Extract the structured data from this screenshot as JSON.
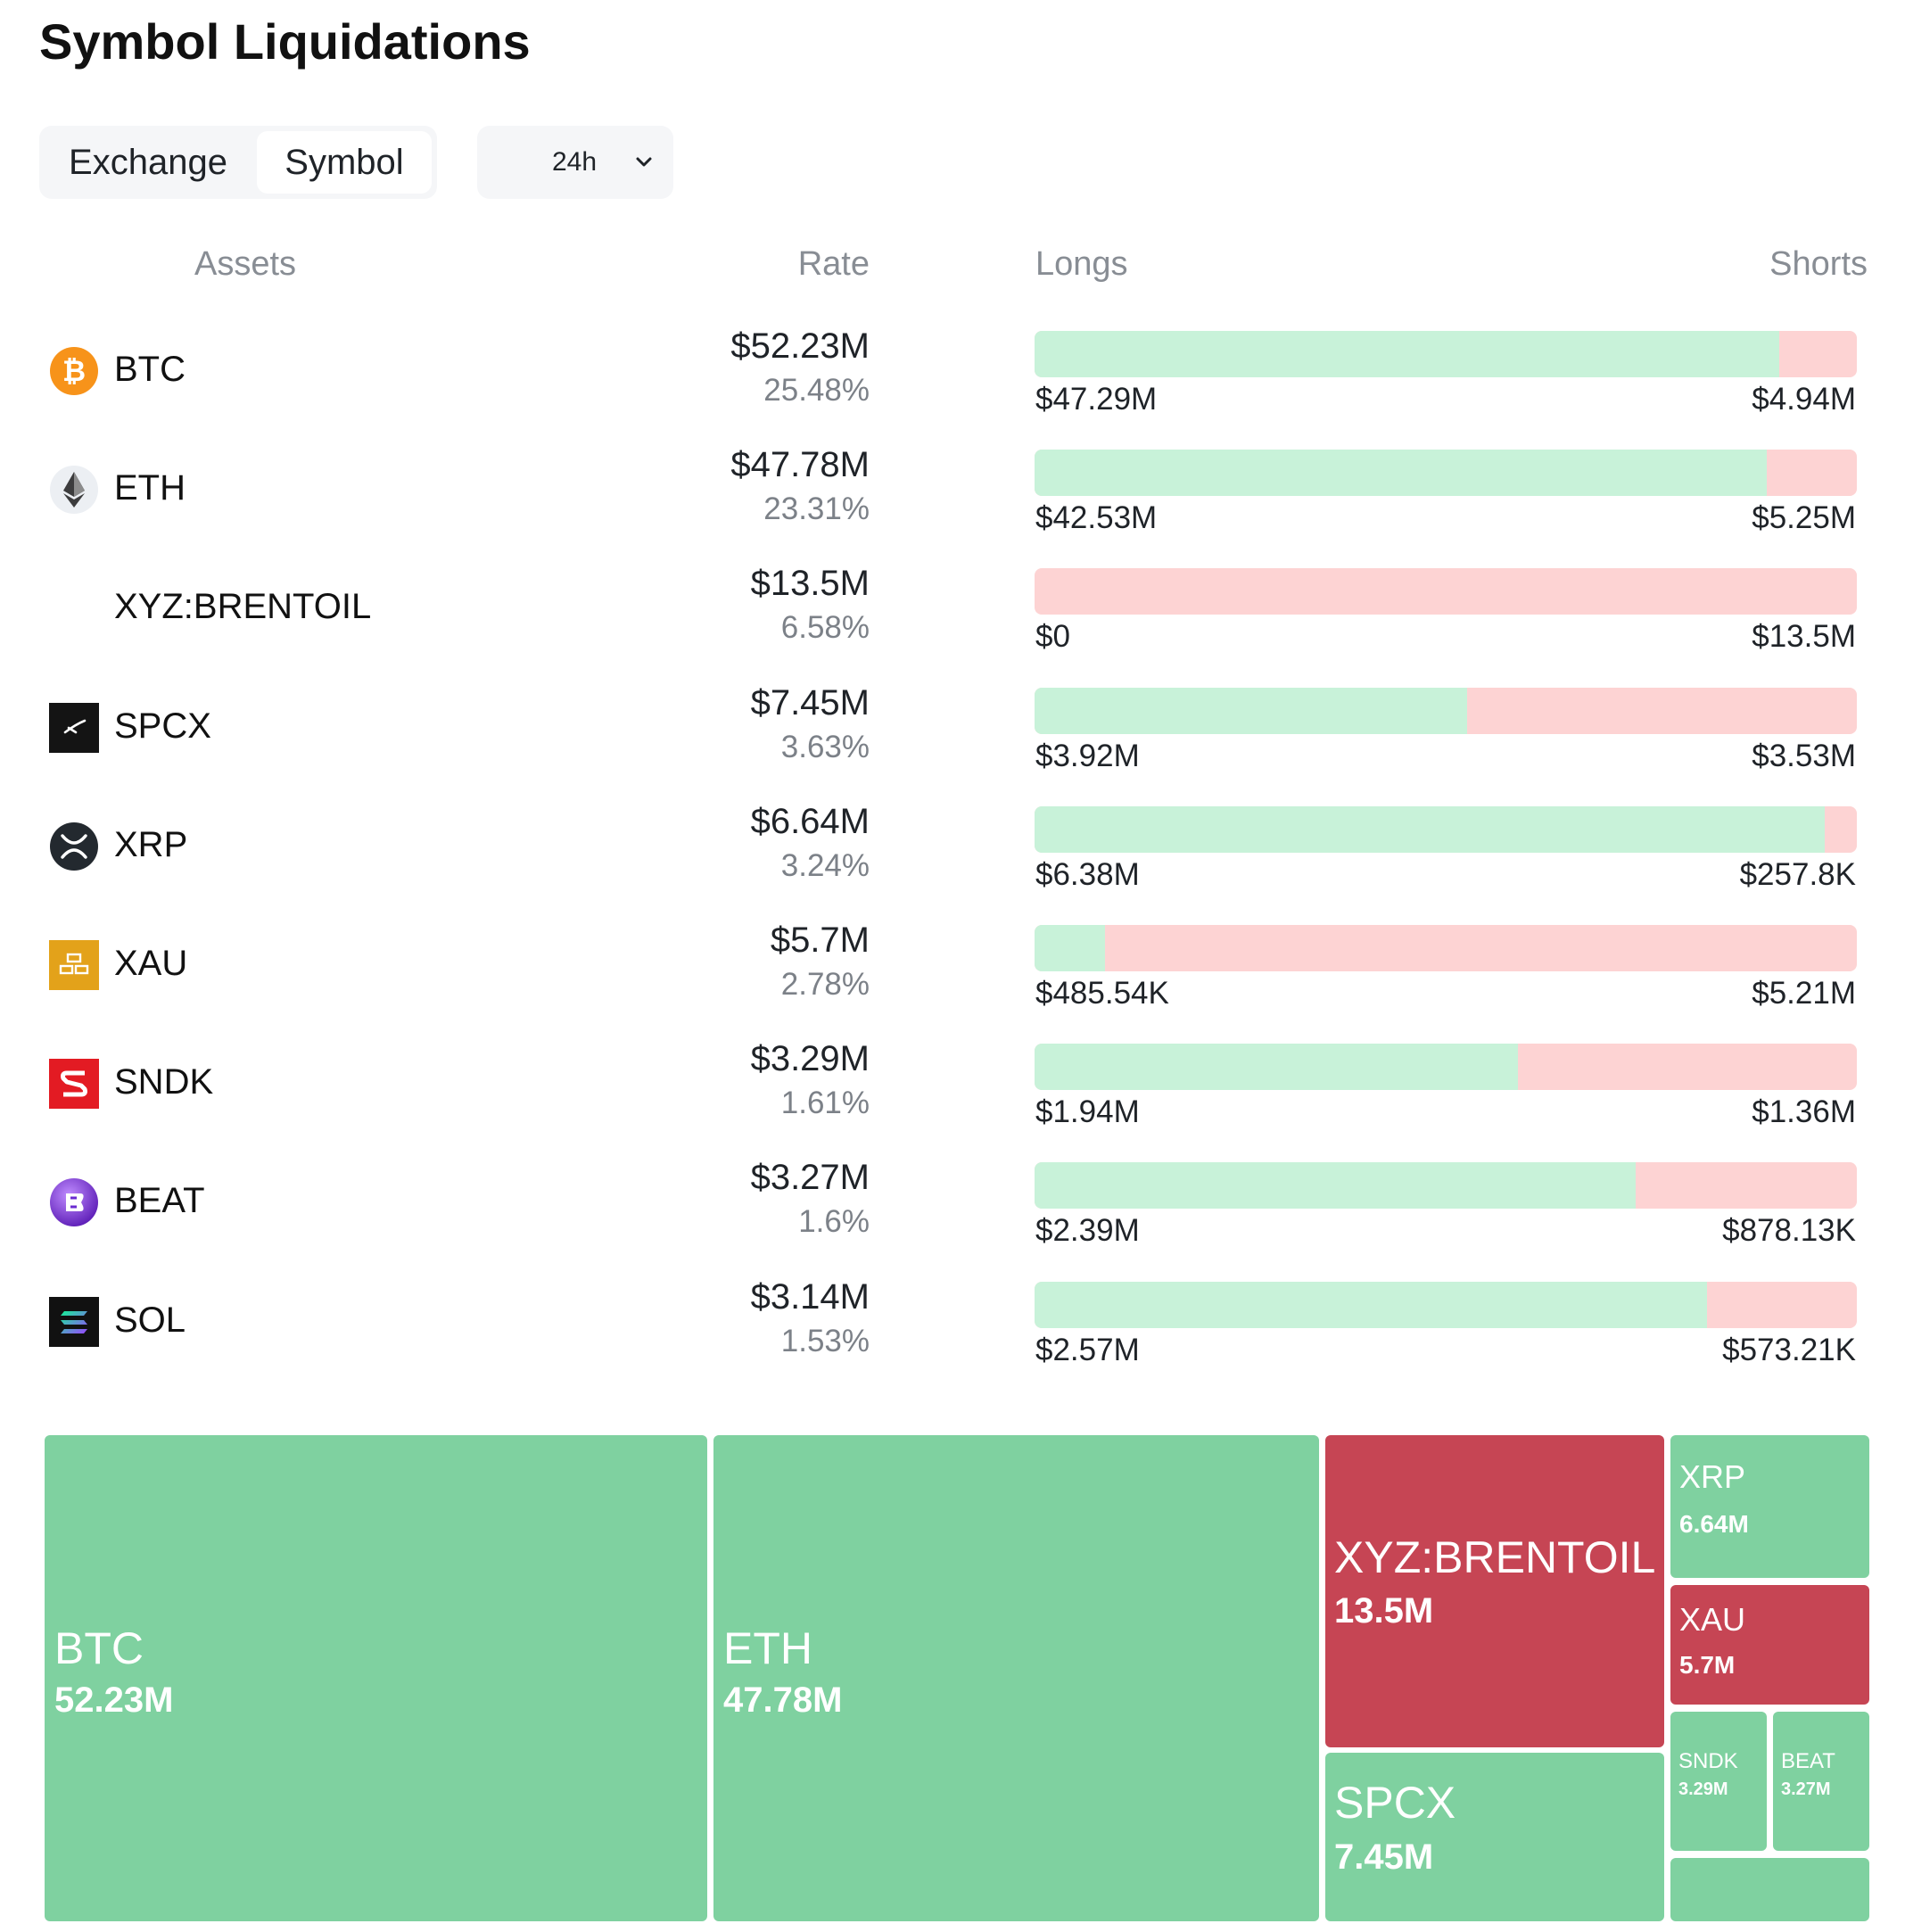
{
  "title": "Symbol Liquidations",
  "tabs": [
    {
      "label": "Exchange",
      "selected": false
    },
    {
      "label": "Symbol",
      "selected": true
    }
  ],
  "period": {
    "selected": "24h"
  },
  "columns": {
    "assets": "Assets",
    "rate": "Rate",
    "longs": "Longs",
    "shorts": "Shorts"
  },
  "colors": {
    "longs": "#c8f2d9",
    "shorts": "#fdd3d3",
    "treemap_green": "#7fd1a0",
    "treemap_red": "#c64554"
  },
  "rows": [
    {
      "symbol": "BTC",
      "icon": "bitcoin-icon",
      "rate": "$52.23M",
      "pct": "25.48%",
      "longs": "$47.29M",
      "shorts": "$4.94M",
      "long_share": 0.9054
    },
    {
      "symbol": "ETH",
      "icon": "ethereum-icon",
      "rate": "$47.78M",
      "pct": "23.31%",
      "longs": "$42.53M",
      "shorts": "$5.25M",
      "long_share": 0.8901
    },
    {
      "symbol": "XYZ:BRENTOIL",
      "icon": "",
      "rate": "$13.5M",
      "pct": "6.58%",
      "longs": "$0",
      "shorts": "$13.5M",
      "long_share": 0.0
    },
    {
      "symbol": "SPCX",
      "icon": "spacex-icon",
      "rate": "$7.45M",
      "pct": "3.63%",
      "longs": "$3.92M",
      "shorts": "$3.53M",
      "long_share": 0.5262
    },
    {
      "symbol": "XRP",
      "icon": "xrp-icon",
      "rate": "$6.64M",
      "pct": "3.24%",
      "longs": "$6.38M",
      "shorts": "$257.8K",
      "long_share": 0.9612
    },
    {
      "symbol": "XAU",
      "icon": "gold-bars-icon",
      "rate": "$5.7M",
      "pct": "2.78%",
      "longs": "$485.54K",
      "shorts": "$5.21M",
      "long_share": 0.0852
    },
    {
      "symbol": "SNDK",
      "icon": "sandisk-icon",
      "rate": "$3.29M",
      "pct": "1.61%",
      "longs": "$1.94M",
      "shorts": "$1.36M",
      "long_share": 0.5879
    },
    {
      "symbol": "BEAT",
      "icon": "beat-icon",
      "rate": "$3.27M",
      "pct": "1.6%",
      "longs": "$2.39M",
      "shorts": "$878.13K",
      "long_share": 0.7314
    },
    {
      "symbol": "SOL",
      "icon": "solana-icon",
      "rate": "$3.14M",
      "pct": "1.53%",
      "longs": "$2.57M",
      "shorts": "$573.21K",
      "long_share": 0.8175
    }
  ],
  "treemap": [
    {
      "name": "BTC",
      "value": "52.23M",
      "color": "green"
    },
    {
      "name": "ETH",
      "value": "47.78M",
      "color": "green"
    },
    {
      "name": "XYZ:BRENTOIL",
      "value": "13.5M",
      "color": "red"
    },
    {
      "name": "SPCX",
      "value": "7.45M",
      "color": "green"
    },
    {
      "name": "XRP",
      "value": "6.64M",
      "color": "green"
    },
    {
      "name": "XAU",
      "value": "5.7M",
      "color": "red"
    },
    {
      "name": "SNDK",
      "value": "3.29M",
      "color": "green"
    },
    {
      "name": "BEAT",
      "value": "3.27M",
      "color": "green"
    },
    {
      "name": "",
      "value": "",
      "color": "green"
    }
  ]
}
